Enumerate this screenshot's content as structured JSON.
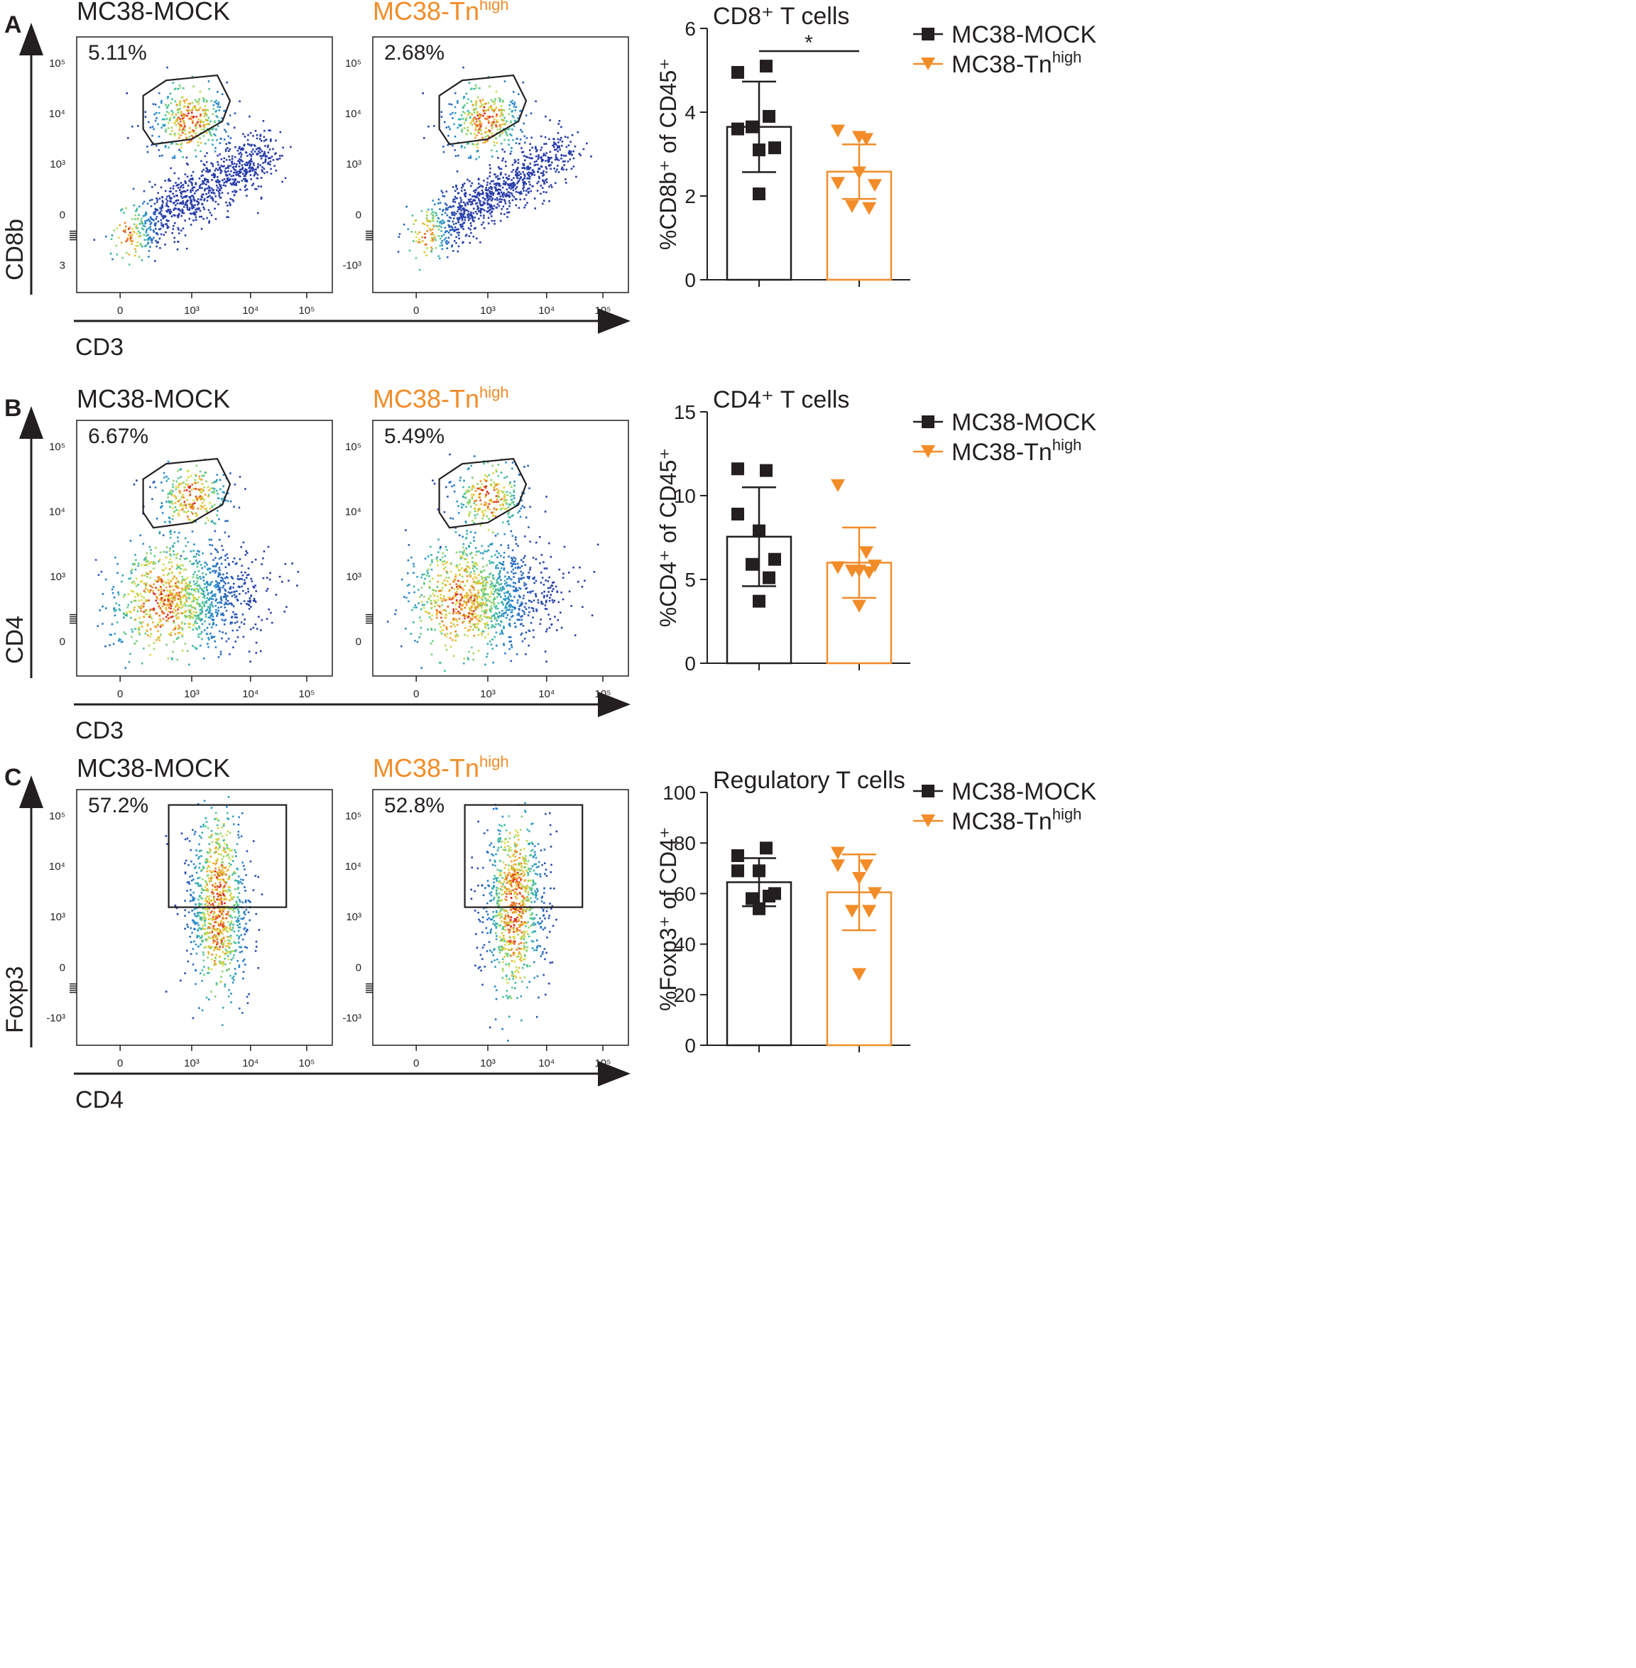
{
  "colors": {
    "mock": "#231f20",
    "tn": "#f28c28",
    "axis": "#231f20"
  },
  "groups": [
    {
      "name": "MC38-MOCK",
      "sup": "",
      "color_key": "mock",
      "marker": "square"
    },
    {
      "name": "MC38-Tn",
      "sup": "high",
      "color_key": "tn",
      "marker": "triangle-down"
    }
  ],
  "panels": [
    {
      "letter": "A",
      "y_label": "CD8b",
      "x_label": "CD3",
      "flow_plots": [
        {
          "group": 0,
          "percent": "5.11%",
          "yticks": [
            "10⁵",
            "10⁴",
            "10³",
            "0",
            "3"
          ],
          "xticks": [
            "0",
            "10³",
            "10⁴",
            "10⁵"
          ],
          "gate": "polygon"
        },
        {
          "group": 1,
          "percent": "2.68%",
          "yticks": [
            "10⁵",
            "10⁴",
            "10³",
            "0",
            "-10³"
          ],
          "xticks": [
            "0",
            "10³",
            "10⁴",
            "10⁵"
          ],
          "gate": "polygon"
        }
      ],
      "bar_chart": {
        "type": "bar",
        "title": "CD8⁺ T cells",
        "ylabel": "%CD8b⁺ of CD45⁺",
        "ylim": [
          0,
          6
        ],
        "yticks": [
          "0",
          "2",
          "4",
          "6"
        ],
        "ytick_values": [
          0,
          2,
          4,
          6
        ],
        "series": [
          {
            "name": "MC38-MOCK",
            "mean": 3.65,
            "sd": 1.08,
            "points": [
              4.95,
              5.1,
              3.6,
              3.1,
              3.15,
              3.65,
              3.9,
              2.05
            ]
          },
          {
            "name": "MC38-Tnhigh",
            "mean": 2.58,
            "sd": 0.65,
            "points": [
              3.55,
              3.35,
              2.3,
              2.55,
              2.25,
              1.75,
              1.7,
              3.4
            ]
          }
        ],
        "significance": "*"
      }
    },
    {
      "letter": "B",
      "y_label": "CD4",
      "x_label": "CD3",
      "flow_plots": [
        {
          "group": 0,
          "percent": "6.67%",
          "yticks": [
            "10⁵",
            "10⁴",
            "10³",
            "0"
          ],
          "xticks": [
            "0",
            "10³",
            "10⁴",
            "10⁵"
          ],
          "gate": "polygon"
        },
        {
          "group": 1,
          "percent": "5.49%",
          "yticks": [
            "10⁵",
            "10⁴",
            "10³",
            "0"
          ],
          "xticks": [
            "0",
            "10³",
            "10⁴",
            "10⁵"
          ],
          "gate": "polygon"
        }
      ],
      "bar_chart": {
        "type": "bar",
        "title": "CD4⁺ T cells",
        "ylabel": "%CD4⁺ of CD45⁺",
        "ylim": [
          0,
          15
        ],
        "yticks": [
          "0",
          "5",
          "10",
          "15"
        ],
        "ytick_values": [
          0,
          5,
          10,
          15
        ],
        "series": [
          {
            "name": "MC38-MOCK",
            "mean": 7.55,
            "sd": 2.95,
            "points": [
              11.6,
              11.5,
              8.9,
              7.9,
              6.2,
              5.9,
              5.1,
              3.7
            ]
          },
          {
            "name": "MC38-Tnhigh",
            "mean": 6.0,
            "sd": 2.1,
            "points": [
              10.6,
              6.6,
              5.7,
              5.5,
              5.8,
              5.5,
              5.4,
              3.4
            ]
          }
        ],
        "significance": ""
      }
    },
    {
      "letter": "C",
      "y_label": "Foxp3",
      "x_label": "CD4",
      "flow_plots": [
        {
          "group": 0,
          "percent": "57.2%",
          "yticks": [
            "10⁵",
            "10⁴",
            "10³",
            "0",
            "-10³"
          ],
          "xticks": [
            "0",
            "10³",
            "10⁴",
            "10⁵"
          ],
          "gate": "rect"
        },
        {
          "group": 1,
          "percent": "52.8%",
          "yticks": [
            "10⁵",
            "10⁴",
            "10³",
            "0",
            "-10³"
          ],
          "xticks": [
            "0",
            "10³",
            "10⁴",
            "10⁵"
          ],
          "gate": "rect"
        }
      ],
      "bar_chart": {
        "type": "bar",
        "title": "Regulatory T cells",
        "ylabel": "%Foxp3⁺ of CD4⁺",
        "ylim": [
          0,
          100
        ],
        "yticks": [
          "0",
          "20",
          "40",
          "60",
          "80",
          "100"
        ],
        "ytick_values": [
          0,
          20,
          40,
          60,
          80,
          100
        ],
        "series": [
          {
            "name": "MC38-MOCK",
            "mean": 64.5,
            "sd": 9.5,
            "points": [
              75,
              78,
              69,
              69,
              60,
              58,
              59,
              54
            ]
          },
          {
            "name": "MC38-Tnhigh",
            "mean": 60.5,
            "sd": 15.0,
            "points": [
              76,
              71,
              71,
              66,
              60,
              53,
              53,
              28
            ]
          }
        ],
        "significance": ""
      }
    }
  ]
}
